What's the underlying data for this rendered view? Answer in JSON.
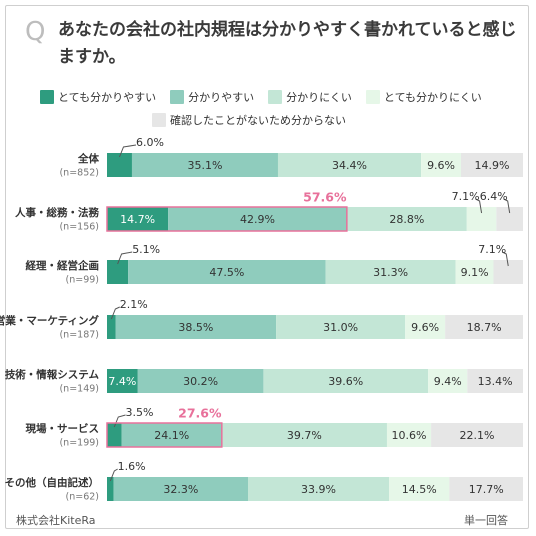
{
  "header": {
    "q_mark": "Q",
    "title": "あなたの会社の社内規程は分かりやすく書かれていると感じますか。"
  },
  "footer": {
    "brand": "株式会社KiteRa",
    "note": "単一回答"
  },
  "colors": {
    "very_easy": "#2e9c7f",
    "easy": "#8fccbd",
    "hard": "#c3e6d6",
    "very_hard": "#e6f7e8",
    "unknown": "#e6e6e6",
    "highlight": "#e8719b"
  },
  "chart_data": {
    "type": "bar",
    "orientation": "horizontal",
    "stacked": true,
    "unit": "%",
    "legend": [
      {
        "name": "とても分かりやすい",
        "color": "#2e9c7f"
      },
      {
        "name": "分かりやすい",
        "color": "#8fccbd"
      },
      {
        "name": "分かりにくい",
        "color": "#c3e6d6"
      },
      {
        "name": "とても分かりにくい",
        "color": "#e6f7e8"
      },
      {
        "name": "確認したことがないため分からない",
        "color": "#e6e6e6"
      }
    ],
    "categories": [
      {
        "name": "全体",
        "n": "(n=852)",
        "values": [
          "6.0%",
          "35.1%",
          "34.4%",
          "9.6%",
          "14.9%"
        ],
        "nums": [
          6.0,
          35.1,
          34.4,
          9.6,
          14.9
        ],
        "highlight": null
      },
      {
        "name": "人事・総務・法務",
        "n": "(n=156)",
        "values": [
          "14.7%",
          "42.9%",
          "28.8%",
          "7.1%",
          "6.4%"
        ],
        "nums": [
          14.7,
          42.9,
          28.8,
          7.1,
          6.4
        ],
        "highlight": "57.6%"
      },
      {
        "name": "経理・経営企画",
        "n": "(n=99)",
        "values": [
          "5.1%",
          "47.5%",
          "31.3%",
          "9.1%",
          "7.1%"
        ],
        "nums": [
          5.1,
          47.5,
          31.3,
          9.1,
          7.1
        ],
        "highlight": null
      },
      {
        "name": "営業・マーケティング",
        "n": "(n=187)",
        "values": [
          "2.1%",
          "38.5%",
          "31.0%",
          "9.6%",
          "18.7%"
        ],
        "nums": [
          2.1,
          38.5,
          31.0,
          9.6,
          18.7
        ],
        "highlight": null
      },
      {
        "name": "技術・情報システム",
        "n": "(n=149)",
        "values": [
          "7.4%",
          "30.2%",
          "39.6%",
          "9.4%",
          "13.4%"
        ],
        "nums": [
          7.4,
          30.2,
          39.6,
          9.4,
          13.4
        ],
        "highlight": null
      },
      {
        "name": "現場・サービス",
        "n": "(n=199)",
        "values": [
          "3.5%",
          "24.1%",
          "39.7%",
          "10.6%",
          "22.1%"
        ],
        "nums": [
          3.5,
          24.1,
          39.7,
          10.6,
          22.1
        ],
        "highlight": "27.6%"
      },
      {
        "name": "その他（自由記述）",
        "n": "(n=62)",
        "values": [
          "1.6%",
          "32.3%",
          "33.9%",
          "14.5%",
          "17.7%"
        ],
        "nums": [
          1.6,
          32.3,
          33.9,
          14.5,
          17.7
        ],
        "highlight": null
      }
    ]
  }
}
